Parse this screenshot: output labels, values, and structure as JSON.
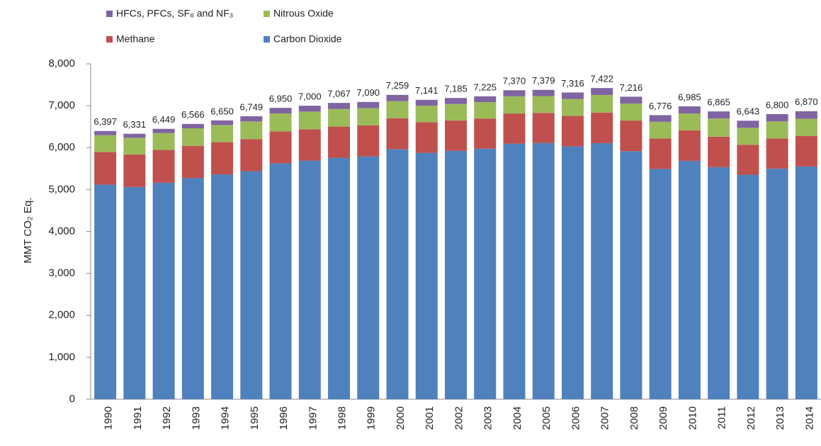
{
  "chart_data": {
    "type": "stacked_bar",
    "y_label": "MMT CO₂ Eq.",
    "categories": [
      "1990",
      "1991",
      "1992",
      "1993",
      "1994",
      "1995",
      "1996",
      "1997",
      "1998",
      "1999",
      "2000",
      "2001",
      "2002",
      "2003",
      "2004",
      "2005",
      "2006",
      "2007",
      "2008",
      "2009",
      "2010",
      "2011",
      "2012",
      "2013",
      "2014"
    ],
    "series": [
      {
        "name": "Carbon Dioxide",
        "color": "#4f81bd",
        "values": [
          5117,
          5061,
          5164,
          5276,
          5360,
          5439,
          5625,
          5690,
          5757,
          5790,
          5964,
          5876,
          5925,
          5975,
          6095,
          6109,
          6031,
          6107,
          5916,
          5491,
          5685,
          5535,
          5353,
          5500,
          5550
        ]
      },
      {
        "name": "Methane",
        "color": "#c0504d",
        "values": [
          780,
          775,
          780,
          765,
          770,
          765,
          760,
          750,
          745,
          740,
          735,
          730,
          725,
          720,
          720,
          720,
          725,
          730,
          730,
          725,
          730,
          725,
          715,
          720,
          730
        ]
      },
      {
        "name": "Nitrous Oxide",
        "color": "#9bbb59",
        "values": [
          400,
          400,
          405,
          420,
          410,
          420,
          430,
          420,
          420,
          410,
          410,
          395,
          390,
          390,
          410,
          400,
          405,
          420,
          405,
          400,
          400,
          435,
          405,
          405,
          410
        ]
      },
      {
        "name": "HFCs, PFCs, SF₆ and NF₃",
        "color": "#8064a2",
        "values": [
          100,
          95,
          100,
          105,
          110,
          125,
          135,
          140,
          145,
          150,
          150,
          140,
          145,
          140,
          145,
          150,
          155,
          165,
          165,
          160,
          170,
          170,
          170,
          175,
          180
        ]
      }
    ],
    "totals": {
      "values": [
        6397,
        6331,
        6449,
        6566,
        6650,
        6749,
        6950,
        7000,
        7067,
        7090,
        7259,
        7141,
        7185,
        7225,
        7370,
        7379,
        7316,
        7422,
        7216,
        6776,
        6985,
        6865,
        6643,
        6800,
        6870
      ],
      "value_labels": [
        "6,397",
        "6,331",
        "6,449",
        "6,566",
        "6,650",
        "6,749",
        "6,950",
        "7,000",
        "7,067",
        "7,090",
        "7,259",
        "7,141",
        "7,185",
        "7,225",
        "7,370",
        "7,379",
        "7,316",
        "7,422",
        "7,216",
        "6,776",
        "6,985",
        "6,865",
        "6,643",
        "6,800",
        "6,870"
      ]
    },
    "ylim": [
      0,
      8000
    ],
    "yticks": [
      0,
      {
        "value": 1000,
        "label": "1,000"
      },
      {
        "value": 2000,
        "label": "2,000"
      },
      {
        "value": 3000,
        "label": "3,000"
      },
      {
        "value": 4000,
        "label": "4,000"
      },
      {
        "value": 5000,
        "label": "5,000"
      },
      {
        "value": 6000,
        "label": "6,000"
      },
      {
        "value": 7000,
        "label": "7,000"
      },
      {
        "value": 8000,
        "label": "8,000"
      }
    ]
  }
}
